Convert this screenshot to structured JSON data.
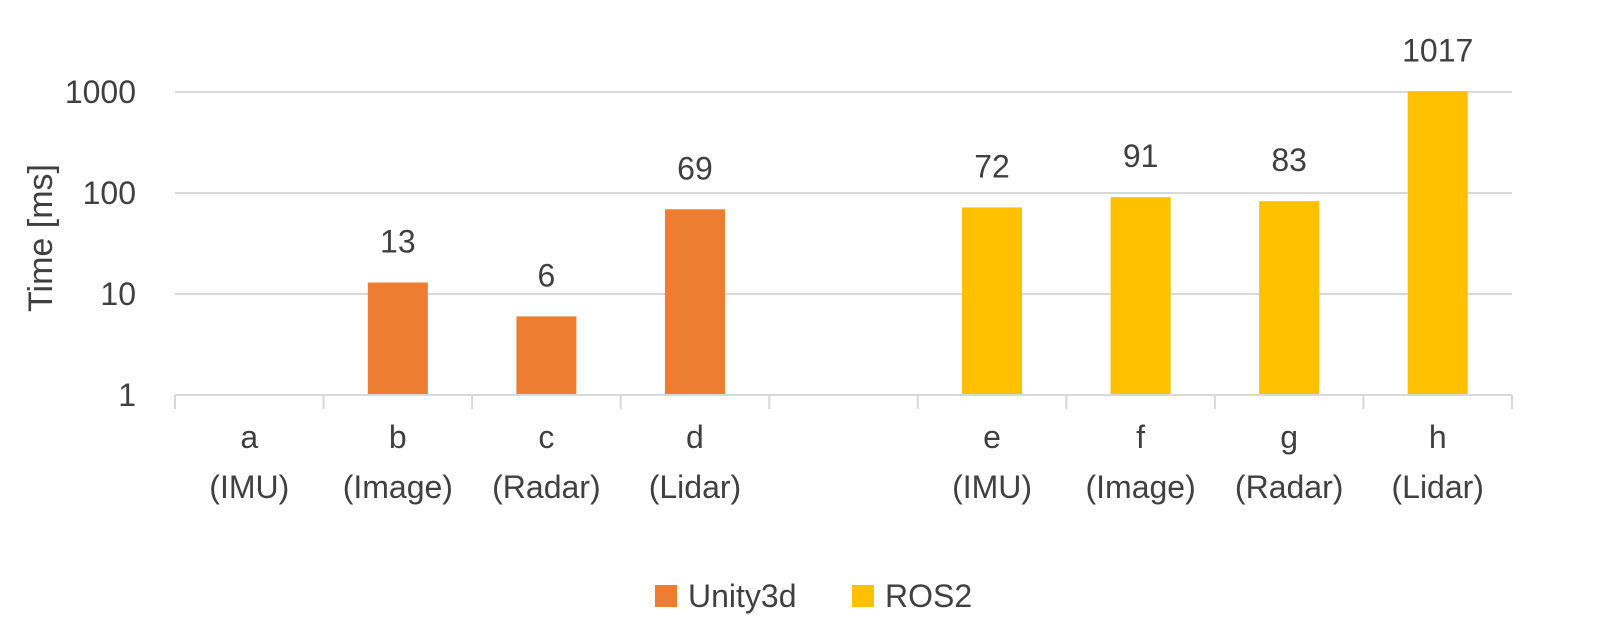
{
  "chart_data": {
    "type": "bar",
    "yscale": "log",
    "ylim": [
      1,
      1000
    ],
    "yticks": [
      "1",
      "10",
      "100",
      "1000"
    ],
    "ylabel": "Time [ms]",
    "grid": true,
    "legend_position": "bottom",
    "categories": [
      {
        "line1": "a",
        "line2": "(IMU)"
      },
      {
        "line1": "b",
        "line2": "(Image)"
      },
      {
        "line1": "c",
        "line2": "(Radar)"
      },
      {
        "line1": "d",
        "line2": "(Lidar)"
      },
      {
        "line1": "",
        "line2": ""
      },
      {
        "line1": "e",
        "line2": "(IMU)"
      },
      {
        "line1": "f",
        "line2": "(Image)"
      },
      {
        "line1": "g",
        "line2": "(Radar)"
      },
      {
        "line1": "h",
        "line2": "(Lidar)"
      }
    ],
    "series": [
      {
        "name": "Unity3d",
        "color": "#ED7D31",
        "values": [
          null,
          13,
          6,
          69,
          null,
          null,
          null,
          null,
          null
        ]
      },
      {
        "name": "ROS2",
        "color": "#FFC000",
        "values": [
          null,
          null,
          null,
          null,
          null,
          72,
          91,
          83,
          1017
        ]
      }
    ],
    "data_labels": [
      "",
      "13",
      "6",
      "69",
      "",
      "72",
      "91",
      "83",
      "1017"
    ]
  }
}
